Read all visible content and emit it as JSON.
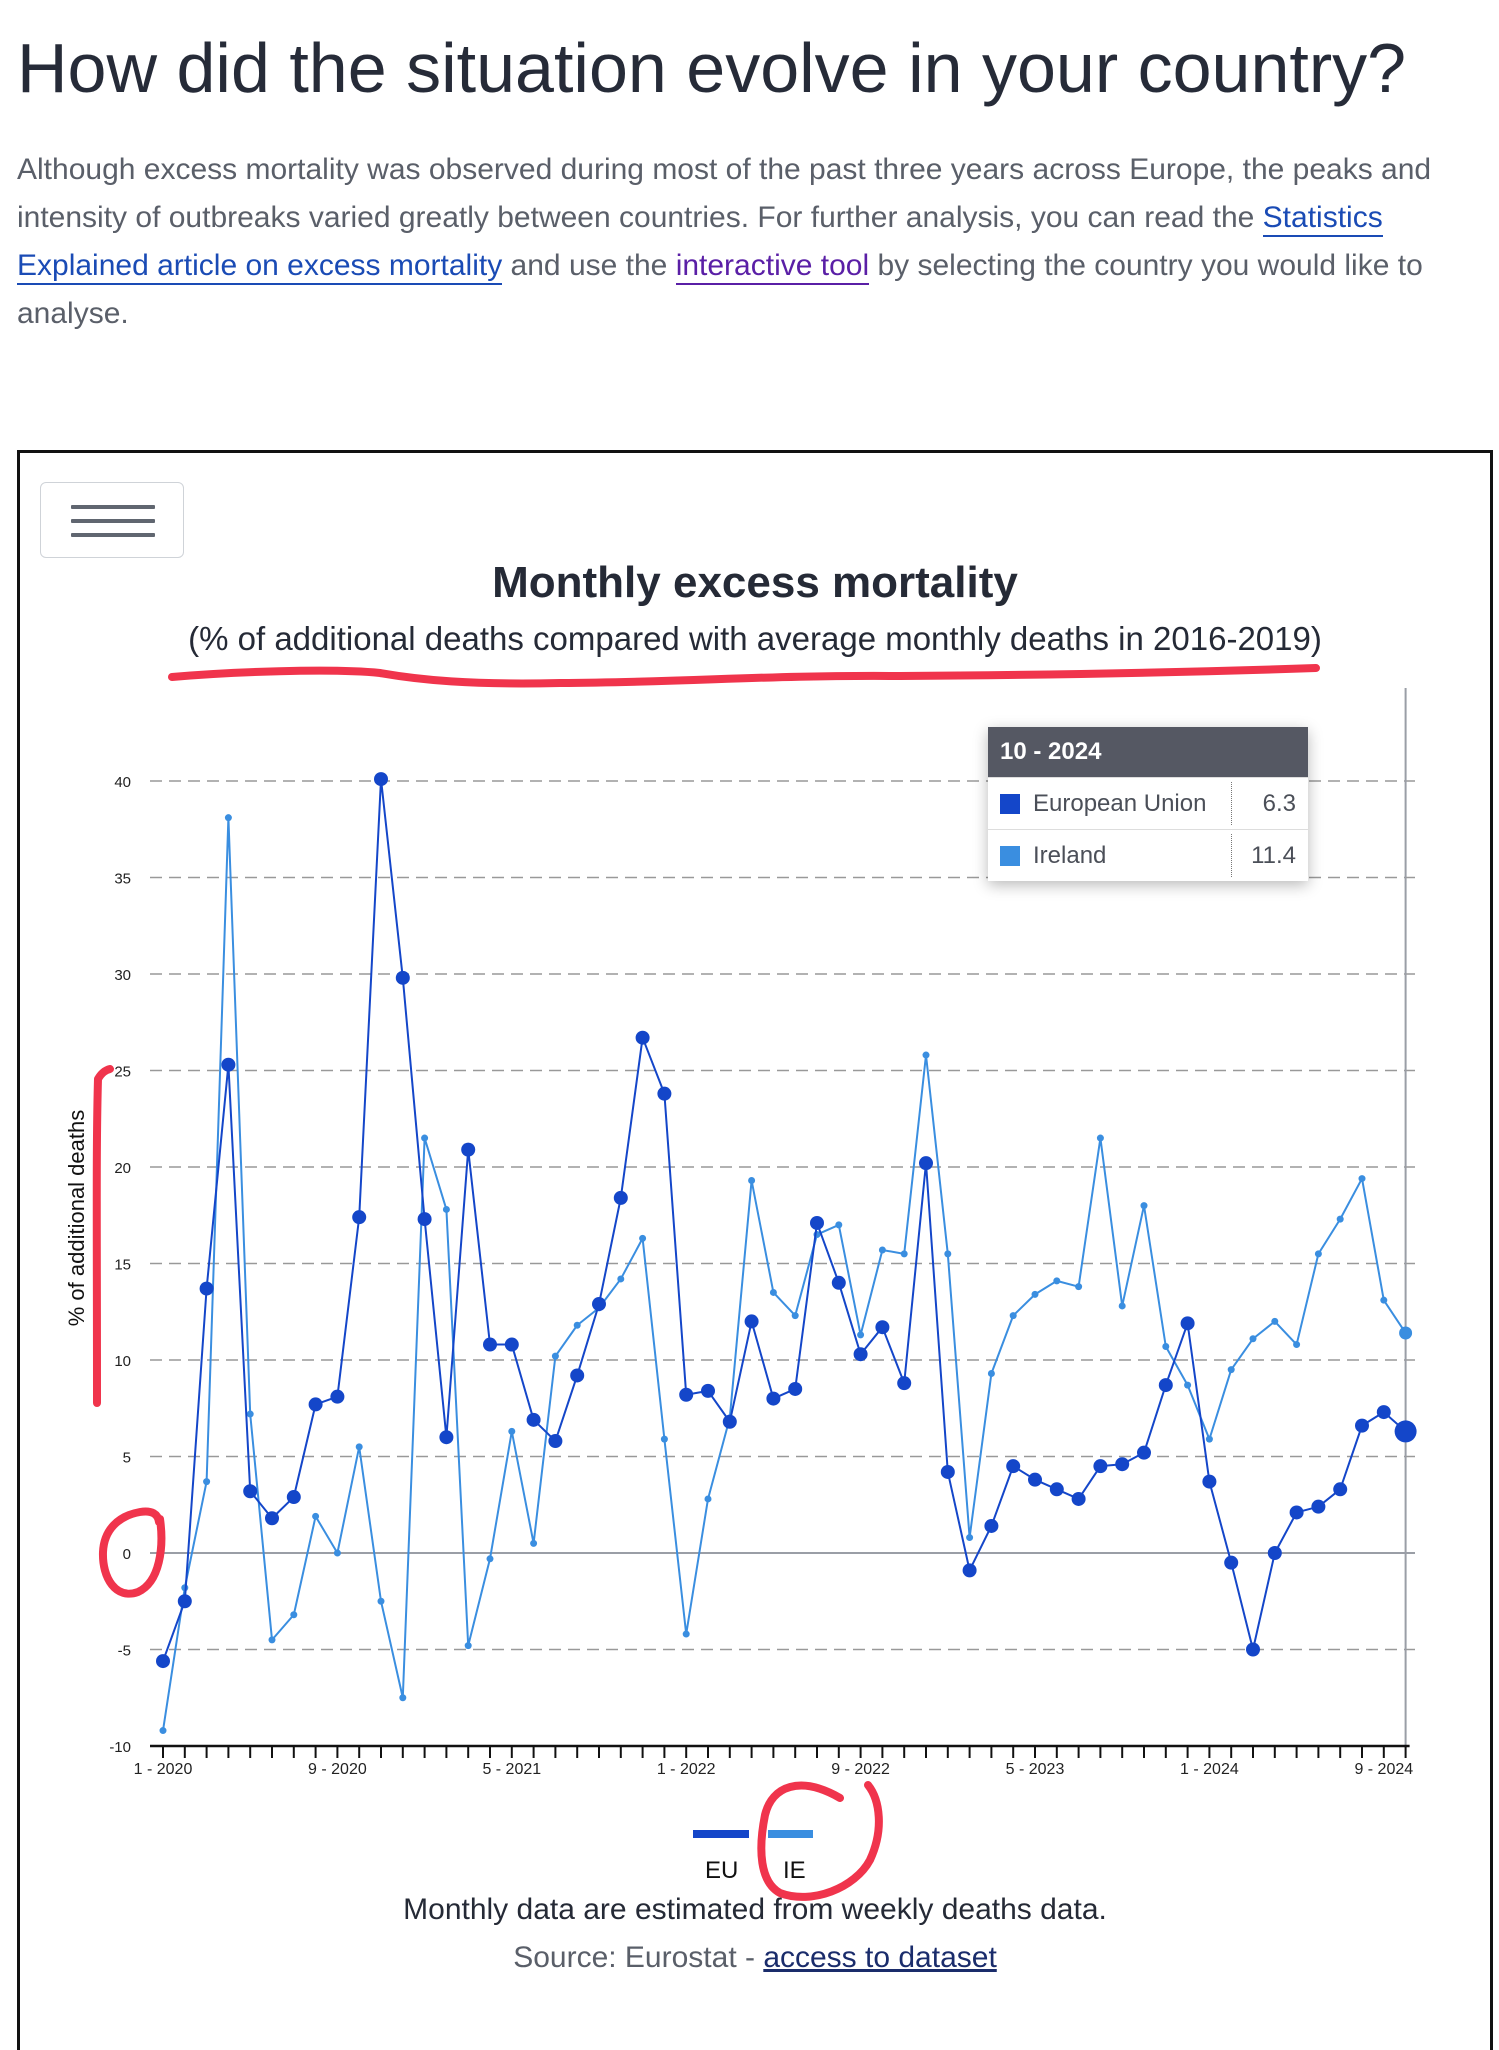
{
  "page": {
    "heading": "How did the situation evolve in your country?",
    "intro_before": "Although excess mortality was observed during most of the past three years across Europe, the peaks and intensity of outbreaks varied greatly between countries. For further analysis, you can read the ",
    "link1": "Statistics Explained article on excess mortality",
    "intro_middle": " and use the ",
    "link2": "interactive tool",
    "intro_after": " by selecting the country you would like to analyse."
  },
  "chart_data": {
    "type": "line",
    "title": "Monthly excess mortality",
    "subtitle": "(% of additional deaths compared with average monthly deaths in 2016-2019)",
    "ylabel": "% of additional deaths",
    "xlabel": "",
    "ylim": [
      -10,
      40
    ],
    "yticks": [
      40,
      35,
      30,
      25,
      20,
      15,
      10,
      5,
      0,
      -5,
      -10
    ],
    "xticks": [
      "1 - 2020",
      "9 - 2020",
      "5 - 2021",
      "1 - 2022",
      "9 - 2022",
      "5 - 2023",
      "1 - 2024",
      "9 - 2024"
    ],
    "grid": true,
    "legend_position": "bottom-center",
    "categories": [
      "1-2020",
      "2-2020",
      "3-2020",
      "4-2020",
      "5-2020",
      "6-2020",
      "7-2020",
      "8-2020",
      "9-2020",
      "10-2020",
      "11-2020",
      "12-2020",
      "1-2021",
      "2-2021",
      "3-2021",
      "4-2021",
      "5-2021",
      "6-2021",
      "7-2021",
      "8-2021",
      "9-2021",
      "10-2021",
      "11-2021",
      "12-2021",
      "1-2022",
      "2-2022",
      "3-2022",
      "4-2022",
      "5-2022",
      "6-2022",
      "7-2022",
      "8-2022",
      "9-2022",
      "10-2022",
      "11-2022",
      "12-2022",
      "1-2023",
      "2-2023",
      "3-2023",
      "4-2023",
      "5-2023",
      "6-2023",
      "7-2023",
      "8-2023",
      "9-2023",
      "10-2023",
      "11-2023",
      "12-2023",
      "1-2024",
      "2-2024",
      "3-2024",
      "4-2024",
      "5-2024",
      "6-2024",
      "7-2024",
      "8-2024",
      "9-2024",
      "10-2024"
    ],
    "series": [
      {
        "name": "EU",
        "color": "#1446c9",
        "values": [
          -5.6,
          -2.5,
          13.7,
          25.3,
          3.2,
          1.8,
          2.9,
          7.7,
          8.1,
          17.4,
          40.1,
          29.8,
          17.3,
          6.0,
          20.9,
          10.8,
          10.8,
          6.9,
          5.8,
          9.2,
          12.9,
          18.4,
          26.7,
          23.8,
          8.2,
          8.4,
          6.8,
          12.0,
          8.0,
          8.5,
          17.1,
          14.0,
          10.3,
          11.7,
          8.8,
          20.2,
          4.2,
          -0.9,
          1.4,
          4.5,
          3.8,
          3.3,
          2.8,
          4.5,
          4.6,
          5.2,
          8.7,
          11.9,
          3.7,
          -0.5,
          -5.0,
          0.0,
          2.1,
          2.4,
          3.3,
          6.6,
          7.3,
          6.3
        ]
      },
      {
        "name": "IE",
        "color": "#3a8ee0",
        "values": [
          -9.2,
          -1.8,
          3.7,
          38.1,
          7.2,
          -4.5,
          -3.2,
          1.9,
          0.0,
          5.5,
          -2.5,
          -7.5,
          21.5,
          17.8,
          -4.8,
          -0.3,
          6.3,
          0.5,
          10.2,
          11.8,
          12.7,
          14.2,
          16.3,
          5.9,
          -4.2,
          2.8,
          7.0,
          19.3,
          13.5,
          12.3,
          16.5,
          17.0,
          11.3,
          15.7,
          15.5,
          25.8,
          15.5,
          0.8,
          9.3,
          12.3,
          13.4,
          14.1,
          13.8,
          21.5,
          12.8,
          18.0,
          10.7,
          8.7,
          5.9,
          9.5,
          11.1,
          12.0,
          10.8,
          15.5,
          17.3,
          19.4,
          13.1,
          11.4
        ]
      }
    ]
  },
  "tooltip": {
    "header": "10 - 2024",
    "rows": [
      {
        "name": "European Union",
        "value": "6.3",
        "color": "#1446c9"
      },
      {
        "name": "Ireland",
        "value": "11.4",
        "color": "#3a8ee0"
      }
    ]
  },
  "footer": {
    "note": "Monthly data are estimated from weekly deaths data.",
    "source_prefix": "Source: Eurostat - ",
    "source_link": "access to dataset"
  },
  "annotations": {
    "color": "#f0344c"
  }
}
